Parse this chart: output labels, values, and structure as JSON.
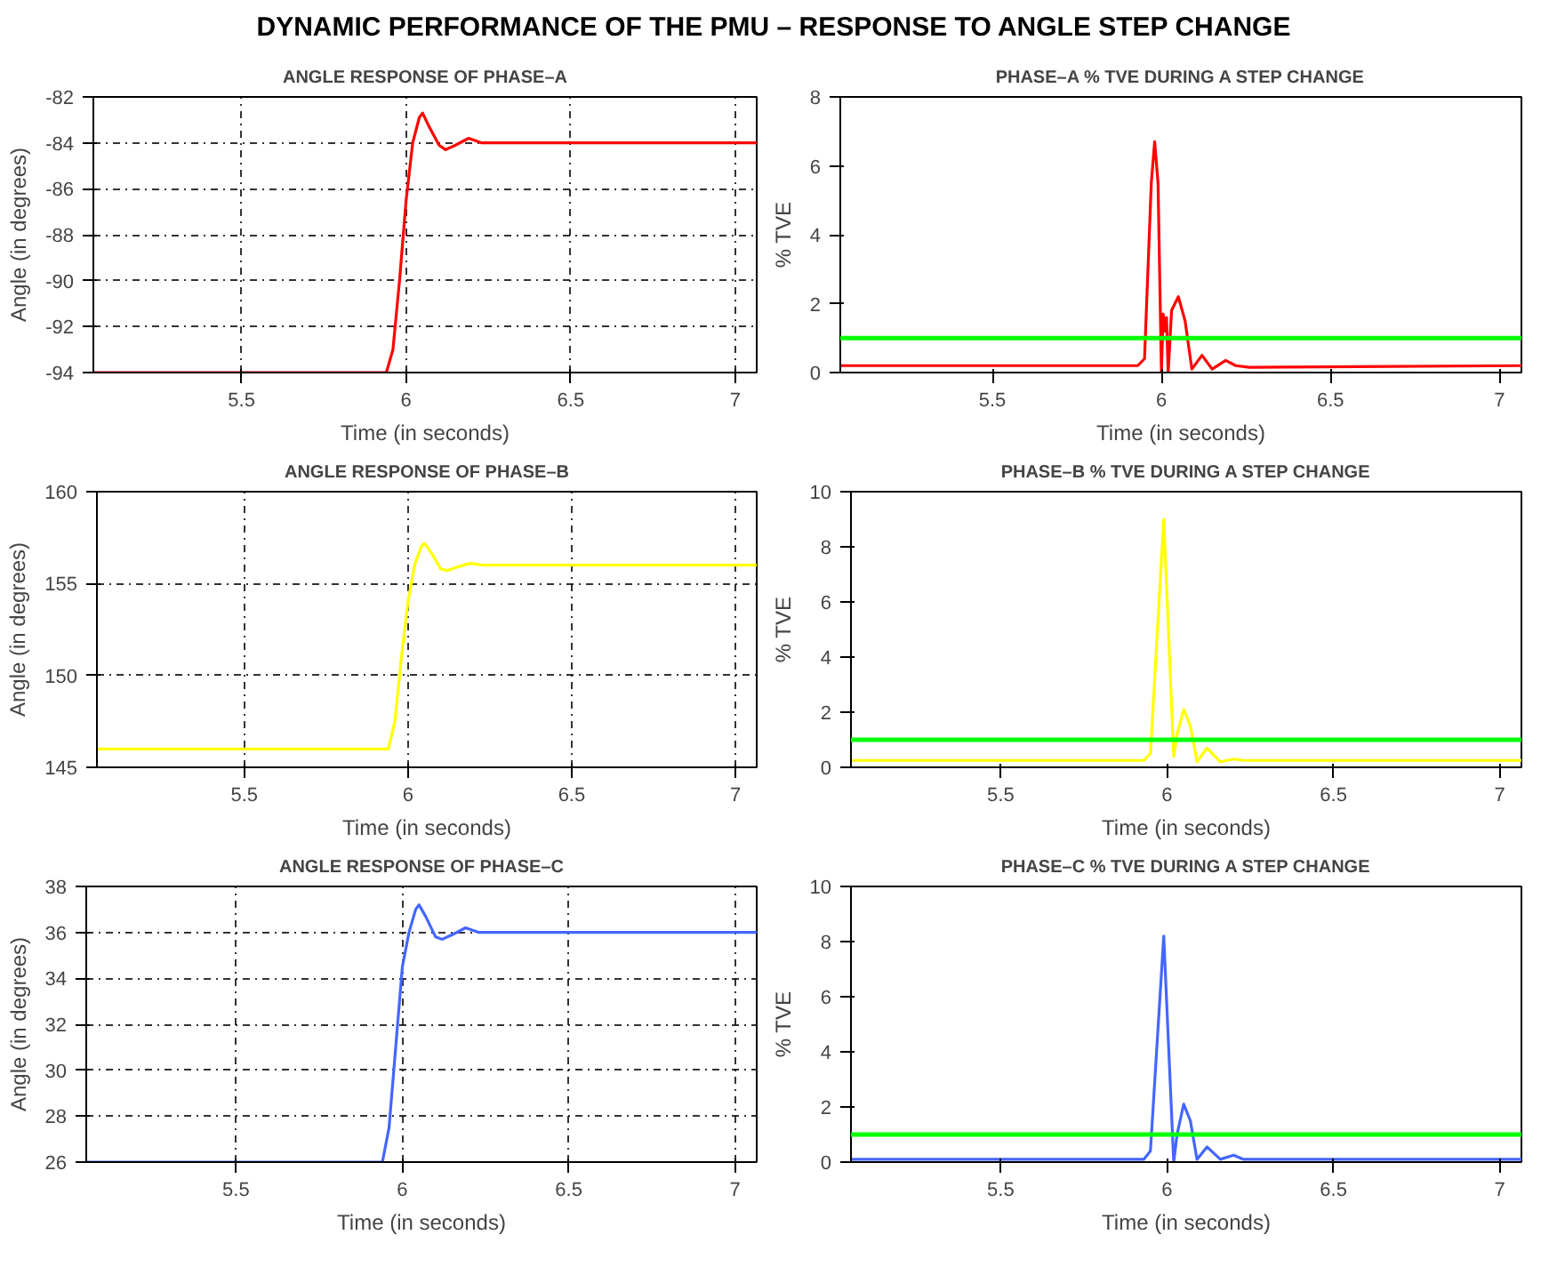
{
  "chart_data": [
    {
      "type": "line",
      "title": "ANGLE RESPONSE OF PHASE–A",
      "annotations": [
        "DYNAMIC PERFORMANCE OF THE PMU – RESPONSE TO ANGLE STEP CHANGE"
      ],
      "xlabel": "Time (in seconds)",
      "ylabel": "Angle (in degrees)",
      "xlim": [
        5.05,
        7.065
      ],
      "xticks": [
        5.5,
        6,
        6.5,
        7
      ],
      "ylim": [
        -94,
        -82
      ],
      "yticks": [
        -94,
        -92,
        -90,
        -88,
        -86,
        -84,
        -82
      ],
      "grid": true,
      "series": [
        {
          "color": "#ff0000",
          "x": [
            5.05,
            5.94,
            5.96,
            5.98,
            6.0,
            6.02,
            6.04,
            6.05,
            6.07,
            6.1,
            6.12,
            6.15,
            6.19,
            6.23,
            6.3,
            7.065
          ],
          "values": [
            -94,
            -94,
            -93,
            -90,
            -86.5,
            -84,
            -82.9,
            -82.7,
            -83.3,
            -84.1,
            -84.3,
            -84.1,
            -83.8,
            -84,
            -84,
            -84
          ]
        }
      ]
    },
    {
      "type": "line",
      "title": "PHASE–A % TVE DURING A STEP CHANGE",
      "xlabel": "Time (in seconds)",
      "ylabel": "% TVE",
      "xlim": [
        5.05,
        7.065
      ],
      "xticks": [
        5.5,
        6,
        6.5,
        7
      ],
      "ylim": [
        0,
        8
      ],
      "yticks": [
        0,
        2,
        4,
        6,
        8
      ],
      "grid": false,
      "ref_lines": [
        {
          "axis": "y",
          "value": 1,
          "color": "#00ff00"
        }
      ],
      "series": [
        {
          "color": "#ff0000",
          "x": [
            5.05,
            5.93,
            5.95,
            5.97,
            5.98,
            5.99,
            6.0,
            6.005,
            6.01,
            6.015,
            6.02,
            6.03,
            6.05,
            6.07,
            6.09,
            6.12,
            6.15,
            6.19,
            6.22,
            6.26,
            7.065
          ],
          "values": [
            0.2,
            0.2,
            0.4,
            5.5,
            6.7,
            5.5,
            0,
            1.7,
            1.2,
            1.6,
            0,
            1.8,
            2.2,
            1.5,
            0.1,
            0.5,
            0.1,
            0.35,
            0.2,
            0.15,
            0.2
          ]
        }
      ]
    },
    {
      "type": "line",
      "title": "ANGLE RESPONSE OF PHASE–B",
      "xlabel": "Time (in seconds)",
      "ylabel": "Angle (in degrees)",
      "xlim": [
        5.05,
        7.065
      ],
      "xticks": [
        5.5,
        6,
        6.5,
        7
      ],
      "ylim": [
        145,
        160
      ],
      "yticks": [
        145,
        150,
        155,
        160
      ],
      "grid": true,
      "series": [
        {
          "color": "#ffff00",
          "x": [
            5.05,
            5.94,
            5.96,
            5.98,
            6.0,
            6.02,
            6.04,
            6.05,
            6.07,
            6.1,
            6.12,
            6.15,
            6.19,
            6.23,
            6.3,
            7.065
          ],
          "values": [
            146,
            146,
            147.5,
            151,
            154,
            156,
            157,
            157.2,
            156.7,
            155.8,
            155.7,
            155.9,
            156.1,
            156,
            156,
            156
          ]
        }
      ]
    },
    {
      "type": "line",
      "title": "PHASE–B % TVE DURING A STEP CHANGE",
      "xlabel": "Time (in seconds)",
      "ylabel": "% TVE",
      "xlim": [
        5.05,
        7.065
      ],
      "xticks": [
        5.5,
        6,
        6.5,
        7
      ],
      "ylim": [
        0,
        10
      ],
      "yticks": [
        0,
        2,
        4,
        6,
        8,
        10
      ],
      "grid": false,
      "ref_lines": [
        {
          "axis": "y",
          "value": 1,
          "color": "#00ff00"
        }
      ],
      "series": [
        {
          "color": "#ffff00",
          "x": [
            5.05,
            5.93,
            5.95,
            5.99,
            6.02,
            6.03,
            6.05,
            6.07,
            6.09,
            6.12,
            6.16,
            6.2,
            6.23,
            7.065
          ],
          "values": [
            0.25,
            0.25,
            0.5,
            9,
            0.4,
            1.2,
            2.1,
            1.5,
            0.2,
            0.7,
            0.2,
            0.3,
            0.25,
            0.25
          ]
        }
      ]
    },
    {
      "type": "line",
      "title": "ANGLE RESPONSE OF PHASE–C",
      "xlabel": "Time (in seconds)",
      "ylabel": "Angle (in degrees)",
      "xlim": [
        5.05,
        7.065
      ],
      "xticks": [
        5.5,
        6,
        6.5,
        7
      ],
      "ylim": [
        26,
        38
      ],
      "yticks": [
        26,
        28,
        30,
        32,
        34,
        36,
        38
      ],
      "grid": true,
      "series": [
        {
          "color": "#4466ff",
          "x": [
            5.05,
            5.94,
            5.96,
            5.98,
            6.0,
            6.02,
            6.04,
            6.05,
            6.07,
            6.1,
            6.12,
            6.15,
            6.19,
            6.23,
            6.3,
            7.065
          ],
          "values": [
            26,
            26,
            27.5,
            31,
            34.5,
            36,
            37,
            37.2,
            36.7,
            35.8,
            35.7,
            35.9,
            36.2,
            36,
            36,
            36
          ]
        }
      ]
    },
    {
      "type": "line",
      "title": "PHASE–C % TVE DURING A STEP CHANGE",
      "xlabel": "Time (in seconds)",
      "ylabel": "% TVE",
      "xlim": [
        5.05,
        7.065
      ],
      "xticks": [
        5.5,
        6,
        6.5,
        7
      ],
      "ylim": [
        0,
        10
      ],
      "yticks": [
        0,
        2,
        4,
        6,
        8,
        10
      ],
      "grid": false,
      "ref_lines": [
        {
          "axis": "y",
          "value": 1,
          "color": "#00ff00"
        }
      ],
      "series": [
        {
          "color": "#4466ff",
          "x": [
            5.05,
            5.93,
            5.95,
            5.99,
            6.02,
            6.03,
            6.05,
            6.07,
            6.09,
            6.12,
            6.16,
            6.2,
            6.23,
            7.065
          ],
          "values": [
            0.1,
            0.1,
            0.4,
            8.2,
            0,
            1.0,
            2.1,
            1.5,
            0.1,
            0.55,
            0.1,
            0.25,
            0.1,
            0.1
          ]
        }
      ]
    }
  ]
}
